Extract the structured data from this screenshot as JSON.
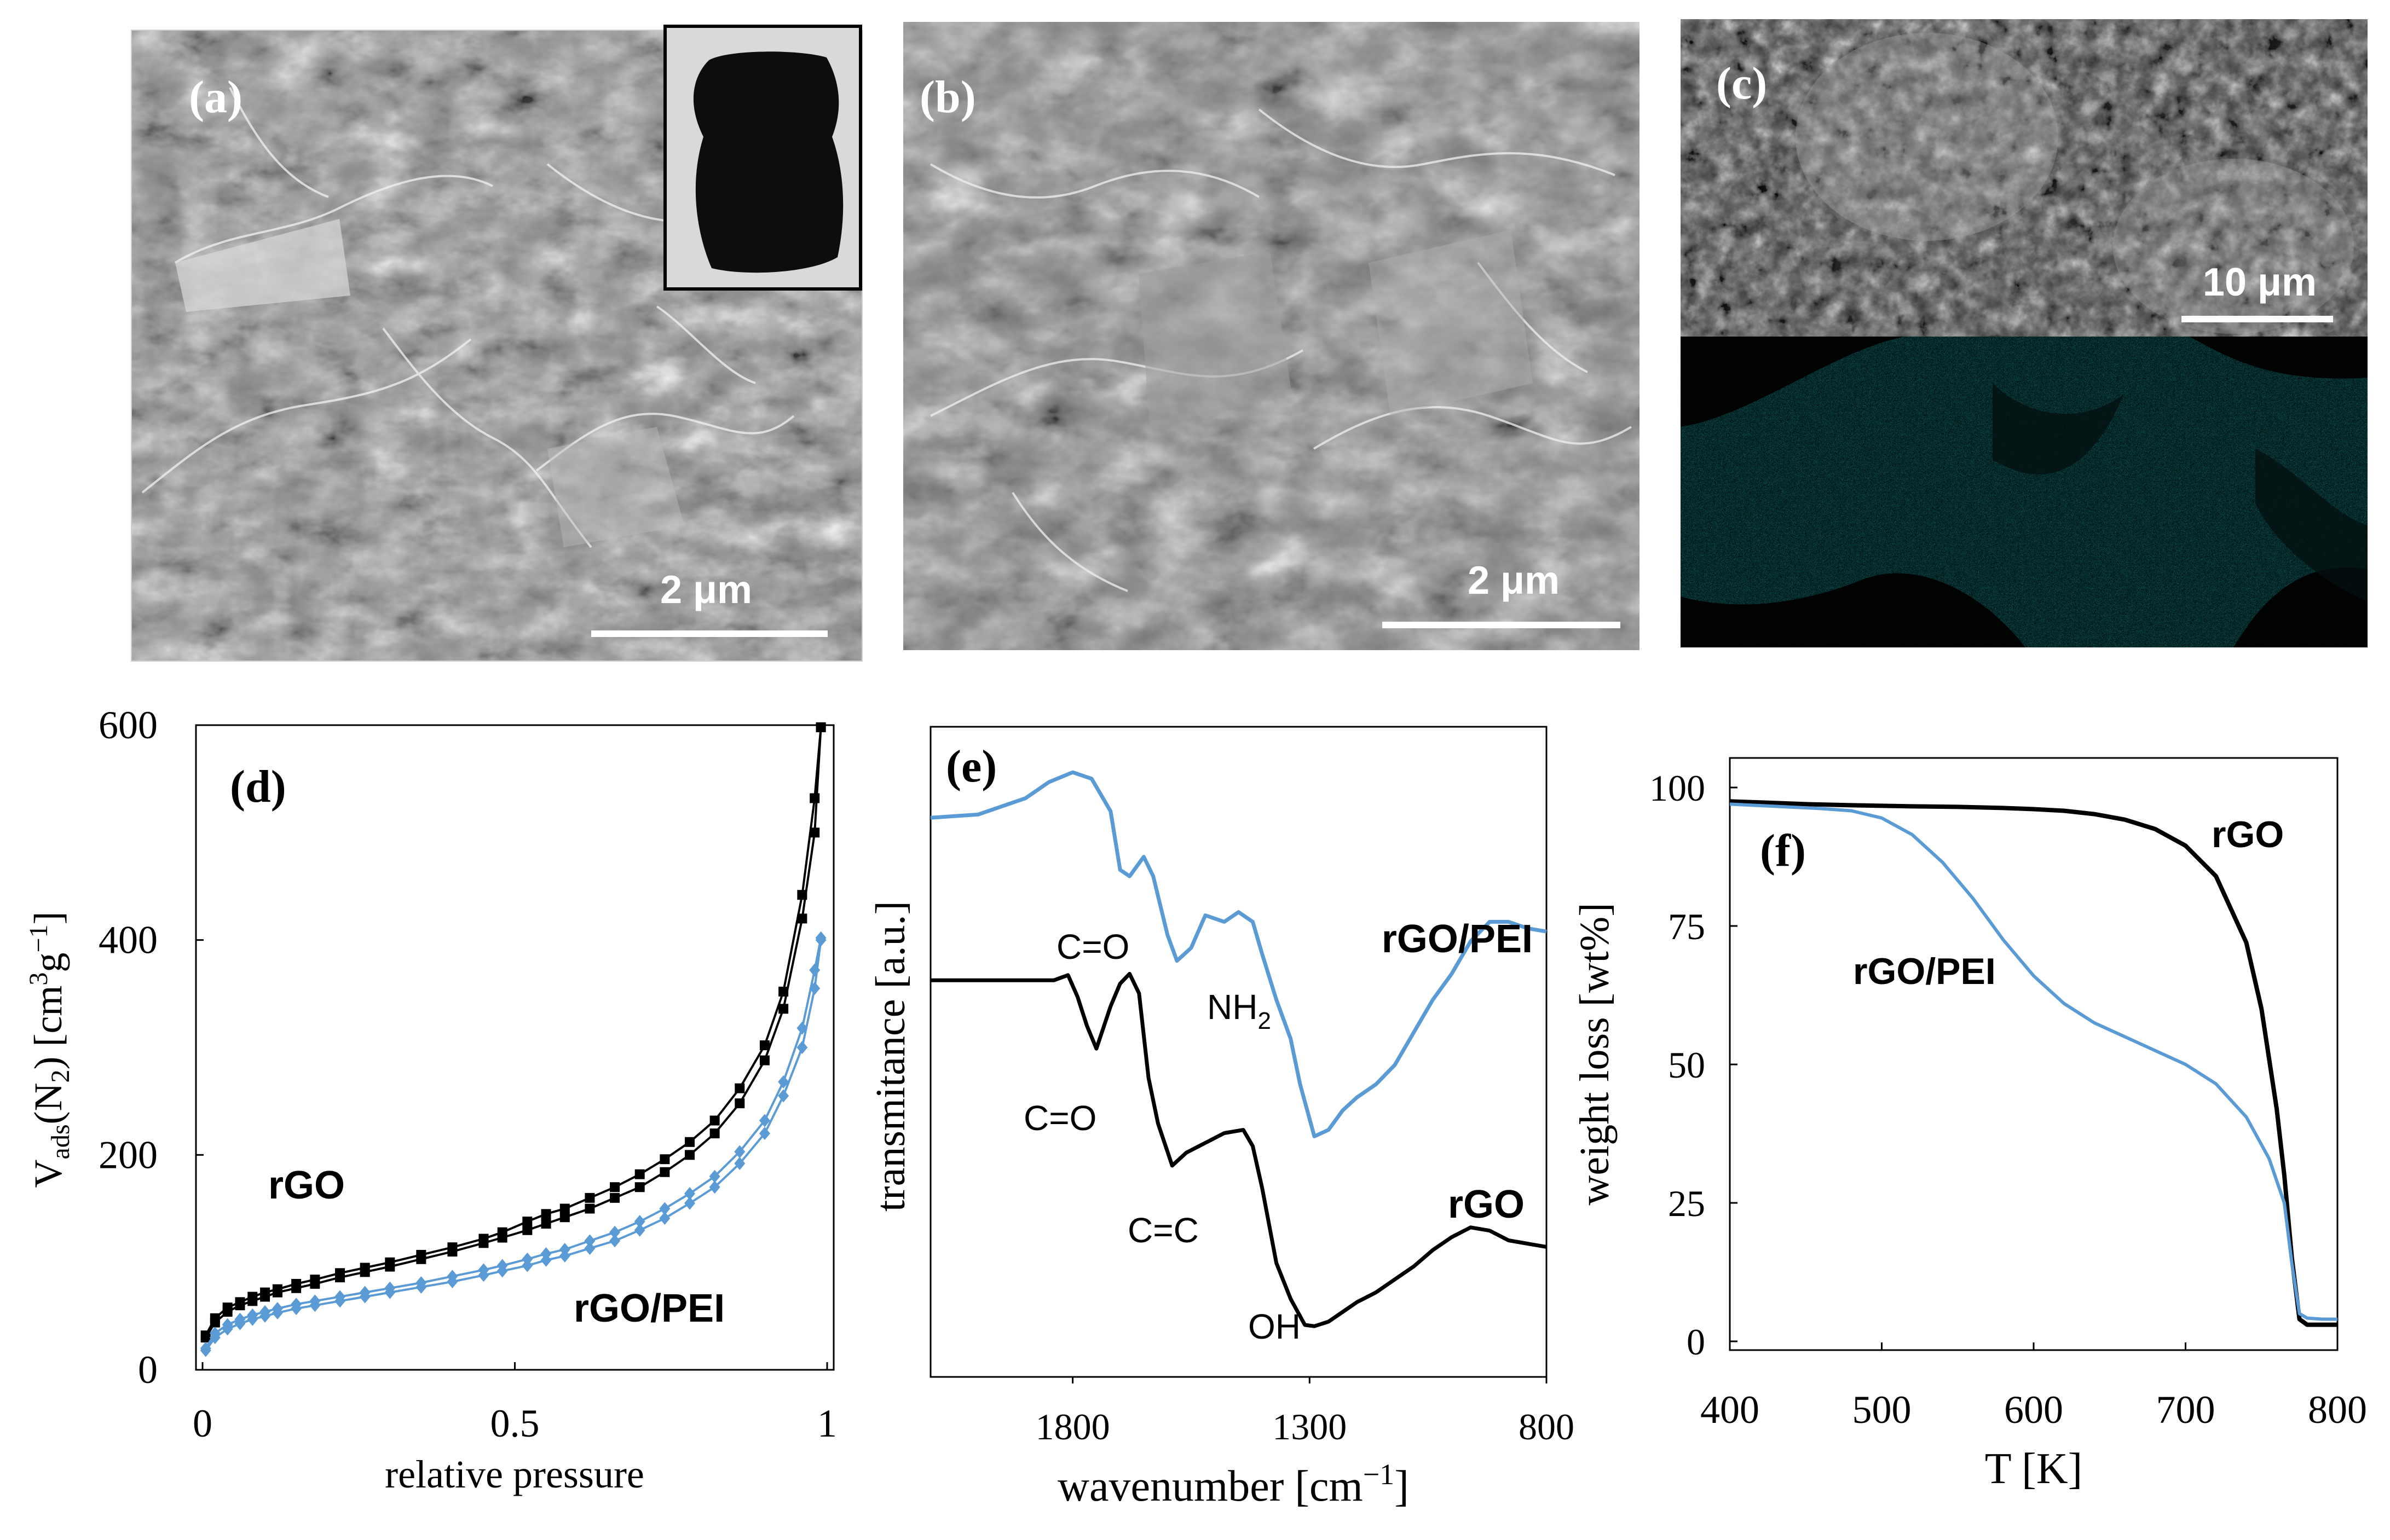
{
  "panels": {
    "a": {
      "label": "(a)",
      "scale_bar": "2 μm"
    },
    "b": {
      "label": "(b)",
      "scale_bar": "2 μm"
    },
    "c": {
      "label": "(c)",
      "scale_bar": "10 μm"
    }
  },
  "colors": {
    "rgo": "#000000",
    "rgo_pei": "#5b9bd5",
    "eds_map": "#1fa7a7"
  },
  "chart_data": [
    {
      "id": "d",
      "type": "line",
      "panel_label": "(d)",
      "xlabel": "relative  pressure",
      "ylabel": "V_ads (N_2) [cm^3g^-1]",
      "ylabel_parts": {
        "v": "V",
        "sub_ads": "ads",
        "paren": "(N",
        "sub_2": "2",
        "bracket": ") [cm",
        "sup_3": "3",
        "g": "g",
        "sup_neg1": "−1",
        "close": "]"
      },
      "xlim": [
        0,
        1
      ],
      "ylim": [
        0,
        600
      ],
      "xticks": [
        0,
        0.5,
        1
      ],
      "xtick_labels": [
        "0",
        "0.5",
        "1"
      ],
      "yticks": [
        0,
        200,
        400,
        600
      ],
      "ytick_labels": [
        "0",
        "200",
        "400",
        "600"
      ],
      "series": [
        {
          "name": "rGO",
          "color": "#000000",
          "marker": "square",
          "x": [
            0.005,
            0.02,
            0.04,
            0.06,
            0.08,
            0.1,
            0.12,
            0.15,
            0.18,
            0.22,
            0.26,
            0.3,
            0.35,
            0.4,
            0.45,
            0.48,
            0.52,
            0.55,
            0.58,
            0.62,
            0.66,
            0.7,
            0.74,
            0.78,
            0.82,
            0.86,
            0.9,
            0.93,
            0.96,
            0.98,
            0.99
          ],
          "y": [
            32,
            48,
            58,
            63,
            68,
            72,
            75,
            80,
            84,
            90,
            95,
            100,
            107,
            114,
            122,
            128,
            138,
            145,
            150,
            160,
            170,
            182,
            196,
            212,
            232,
            262,
            302,
            352,
            442,
            532,
            598
          ],
          "y_branch2": [
            30,
            44,
            54,
            60,
            64,
            68,
            72,
            76,
            80,
            86,
            91,
            96,
            103,
            110,
            118,
            123,
            130,
            136,
            142,
            150,
            160,
            170,
            184,
            200,
            220,
            248,
            288,
            336,
            420,
            500,
            598
          ]
        },
        {
          "name": "rGO/PEI",
          "color": "#5b9bd5",
          "marker": "diamond",
          "x": [
            0.005,
            0.02,
            0.04,
            0.06,
            0.08,
            0.1,
            0.12,
            0.15,
            0.18,
            0.22,
            0.26,
            0.3,
            0.35,
            0.4,
            0.45,
            0.48,
            0.52,
            0.55,
            0.58,
            0.62,
            0.66,
            0.7,
            0.74,
            0.78,
            0.82,
            0.86,
            0.9,
            0.93,
            0.96,
            0.98,
            0.99
          ],
          "y": [
            20,
            34,
            42,
            47,
            51,
            54,
            57,
            61,
            64,
            68,
            72,
            76,
            81,
            87,
            93,
            97,
            103,
            108,
            112,
            120,
            128,
            138,
            150,
            164,
            180,
            203,
            232,
            268,
            318,
            372,
            402
          ],
          "y_branch2": [
            18,
            30,
            38,
            43,
            47,
            50,
            53,
            57,
            60,
            64,
            68,
            72,
            77,
            82,
            88,
            92,
            97,
            102,
            106,
            113,
            120,
            130,
            141,
            155,
            170,
            192,
            220,
            255,
            300,
            355,
            400
          ]
        }
      ],
      "annotations": [
        "rGO",
        "rGO/PEI"
      ]
    },
    {
      "id": "e",
      "type": "line",
      "panel_label": "(e)",
      "xlabel": "wavenumber [cm^-1]",
      "xlabel_parts": {
        "main": "wavenumber [cm",
        "sup": "−1",
        "close": "]"
      },
      "ylabel": "transmitance [a.u.]",
      "xlim": [
        2100,
        800
      ],
      "x_reversed": true,
      "ylim": [
        0,
        1
      ],
      "xticks": [
        1800,
        1300,
        800
      ],
      "xtick_labels": [
        "1800",
        "1300",
        "800"
      ],
      "series": [
        {
          "name": "rGO/PEI",
          "color": "#5b9bd5",
          "x": [
            2100,
            2000,
            1900,
            1850,
            1800,
            1760,
            1720,
            1700,
            1680,
            1650,
            1630,
            1600,
            1580,
            1550,
            1520,
            1480,
            1450,
            1420,
            1400,
            1370,
            1340,
            1320,
            1290,
            1260,
            1230,
            1200,
            1160,
            1120,
            1080,
            1040,
            1000,
            960,
            920,
            880,
            840,
            800
          ],
          "y": [
            0.86,
            0.865,
            0.89,
            0.915,
            0.93,
            0.92,
            0.87,
            0.78,
            0.77,
            0.8,
            0.77,
            0.68,
            0.64,
            0.66,
            0.71,
            0.7,
            0.715,
            0.7,
            0.65,
            0.58,
            0.52,
            0.45,
            0.37,
            0.38,
            0.41,
            0.43,
            0.45,
            0.48,
            0.53,
            0.58,
            0.62,
            0.67,
            0.7,
            0.7,
            0.69,
            0.685
          ]
        },
        {
          "name": "rGO",
          "color": "#000000",
          "x": [
            2100,
            2000,
            1900,
            1840,
            1810,
            1790,
            1770,
            1750,
            1720,
            1700,
            1680,
            1660,
            1640,
            1620,
            1590,
            1560,
            1520,
            1480,
            1440,
            1420,
            1400,
            1370,
            1340,
            1310,
            1290,
            1260,
            1230,
            1200,
            1160,
            1120,
            1080,
            1040,
            1000,
            960,
            920,
            880,
            840,
            800
          ],
          "y": [
            0.61,
            0.61,
            0.61,
            0.61,
            0.618,
            0.585,
            0.54,
            0.505,
            0.57,
            0.605,
            0.62,
            0.59,
            0.46,
            0.39,
            0.325,
            0.345,
            0.36,
            0.375,
            0.38,
            0.355,
            0.29,
            0.175,
            0.12,
            0.08,
            0.078,
            0.085,
            0.1,
            0.115,
            0.13,
            0.15,
            0.17,
            0.195,
            0.215,
            0.23,
            0.225,
            0.21,
            0.205,
            0.2
          ]
        }
      ],
      "peak_labels": {
        "co_top": "C=O",
        "nh2_base": "NH",
        "nh2_sub": "2",
        "co_bottom": "C=O",
        "cc": "C=C",
        "oh": "OH"
      },
      "annotations": [
        "rGO/PEI",
        "rGO"
      ]
    },
    {
      "id": "f",
      "type": "line",
      "panel_label": "(f)",
      "xlabel": "T [K]",
      "ylabel": "weight  loss [wt%]",
      "xlim": [
        400,
        800
      ],
      "ylim": [
        0,
        100
      ],
      "xticks": [
        400,
        500,
        600,
        700,
        800
      ],
      "xtick_labels": [
        "400",
        "500",
        "600",
        "700",
        "800"
      ],
      "yticks": [
        0,
        25,
        50,
        75,
        100
      ],
      "ytick_labels": [
        "0",
        "25",
        "50",
        "75",
        "100"
      ],
      "series": [
        {
          "name": "rGO",
          "color": "#000000",
          "x": [
            400,
            420,
            450,
            480,
            500,
            520,
            550,
            580,
            600,
            620,
            640,
            660,
            680,
            700,
            720,
            740,
            750,
            760,
            765,
            770,
            775,
            780,
            790,
            800
          ],
          "y": [
            97.5,
            97.3,
            97.0,
            96.8,
            96.7,
            96.6,
            96.5,
            96.3,
            96.1,
            95.8,
            95.2,
            94.2,
            92.5,
            89.5,
            84.0,
            72.0,
            60.0,
            42.0,
            30.0,
            15.0,
            4.0,
            3.0,
            3.0,
            3.0
          ]
        },
        {
          "name": "rGO/PEI",
          "color": "#5b9bd5",
          "x": [
            400,
            430,
            460,
            480,
            500,
            520,
            540,
            560,
            580,
            600,
            620,
            640,
            660,
            680,
            700,
            720,
            740,
            755,
            765,
            770,
            775,
            780,
            790,
            800
          ],
          "y": [
            97.0,
            96.6,
            96.2,
            95.8,
            94.5,
            91.5,
            86.5,
            80.0,
            72.5,
            66.0,
            61.0,
            57.5,
            55.0,
            52.5,
            50.0,
            46.5,
            40.5,
            33.0,
            25.0,
            14.0,
            5.0,
            4.2,
            4.0,
            4.0
          ]
        }
      ],
      "annotations": [
        "rGO",
        "rGO/PEI"
      ]
    }
  ]
}
